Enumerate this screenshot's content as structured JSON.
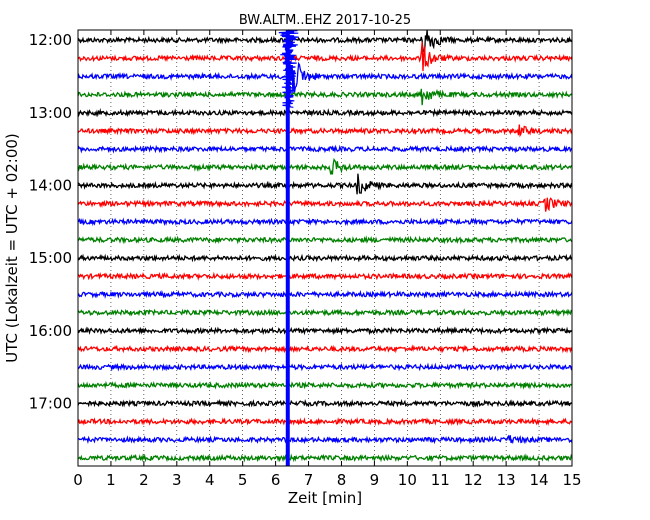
{
  "chart_data": {
    "type": "line",
    "title": "BW.ALTM..EHZ 2017-10-25",
    "xlabel": "Zeit  [min]",
    "ylabel": "UTC (Lokalzeit = UTC + 02:00)",
    "xlim": [
      0,
      15
    ],
    "x_ticks": [
      "0",
      "1",
      "2",
      "3",
      "4",
      "5",
      "6",
      "7",
      "8",
      "9",
      "10",
      "11",
      "12",
      "13",
      "14",
      "15"
    ],
    "y_tick_labels": [
      "12:00",
      "13:00",
      "14:00",
      "15:00",
      "16:00",
      "17:00"
    ],
    "grid": true,
    "trace_colors": [
      "#000000",
      "#ff0000",
      "#0000ff",
      "#008000"
    ],
    "traces": [
      {
        "start": "12:00",
        "color": "#000000",
        "events": [
          {
            "x": 10.5,
            "amp": 18
          }
        ]
      },
      {
        "start": "12:15",
        "color": "#ff0000",
        "events": [
          {
            "x": 10.45,
            "amp": 14
          }
        ]
      },
      {
        "start": "12:30",
        "color": "#0000ff",
        "events": [
          {
            "x": 6.5,
            "amp": 24
          }
        ]
      },
      {
        "start": "12:45",
        "color": "#008000",
        "events": [
          {
            "x": 10.45,
            "amp": 10
          }
        ]
      },
      {
        "start": "13:00",
        "color": "#000000",
        "events": []
      },
      {
        "start": "13:15",
        "color": "#ff0000",
        "events": [
          {
            "x": 13.4,
            "amp": 5
          }
        ]
      },
      {
        "start": "13:30",
        "color": "#0000ff",
        "events": []
      },
      {
        "start": "13:45",
        "color": "#008000",
        "events": [
          {
            "x": 7.7,
            "amp": 8
          }
        ]
      },
      {
        "start": "14:00",
        "color": "#000000",
        "events": [
          {
            "x": 8.5,
            "amp": 10
          }
        ]
      },
      {
        "start": "14:15",
        "color": "#ff0000",
        "events": [
          {
            "x": 14.2,
            "amp": 7
          }
        ]
      },
      {
        "start": "14:30",
        "color": "#0000ff",
        "events": []
      },
      {
        "start": "14:45",
        "color": "#008000",
        "events": []
      },
      {
        "start": "15:00",
        "color": "#000000",
        "events": []
      },
      {
        "start": "15:15",
        "color": "#ff0000",
        "events": []
      },
      {
        "start": "15:30",
        "color": "#0000ff",
        "events": []
      },
      {
        "start": "15:45",
        "color": "#008000",
        "events": []
      },
      {
        "start": "16:00",
        "color": "#000000",
        "events": []
      },
      {
        "start": "16:15",
        "color": "#ff0000",
        "events": []
      },
      {
        "start": "16:30",
        "color": "#0000ff",
        "events": []
      },
      {
        "start": "16:45",
        "color": "#008000",
        "events": []
      },
      {
        "start": "17:00",
        "color": "#000000",
        "events": []
      },
      {
        "start": "17:15",
        "color": "#ff0000",
        "events": []
      },
      {
        "start": "17:30",
        "color": "#0000ff",
        "events": [
          {
            "x": 13.1,
            "amp": 3
          }
        ]
      },
      {
        "start": "17:45",
        "color": "#008000",
        "events": []
      }
    ],
    "artifact": {
      "x": 6.4,
      "color": "#0000ff",
      "from": "12:00",
      "to": "18:00"
    }
  }
}
